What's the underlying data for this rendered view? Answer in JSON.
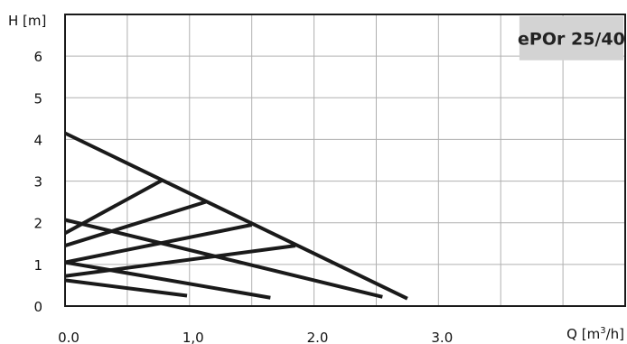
{
  "chart_data": {
    "type": "line",
    "title": "ePOr 25/40",
    "ylabel": "H [m]",
    "xlabel_prefix": "Q [m",
    "xlabel_sup": "3",
    "xlabel_suffix": "/h]",
    "xlim": [
      0,
      4.5
    ],
    "ylim": [
      0,
      7
    ],
    "xticks": [
      {
        "value": 0,
        "label": "0.0"
      },
      {
        "value": 1,
        "label": "1,0"
      },
      {
        "value": 2,
        "label": "2.0"
      },
      {
        "value": 3,
        "label": "3.0"
      }
    ],
    "yticks": [
      {
        "value": 0,
        "label": "0"
      },
      {
        "value": 1,
        "label": "1"
      },
      {
        "value": 2,
        "label": "2"
      },
      {
        "value": 3,
        "label": "3"
      },
      {
        "value": 4,
        "label": "4"
      },
      {
        "value": 5,
        "label": "5"
      },
      {
        "value": 6,
        "label": "6"
      }
    ],
    "grid": true,
    "line_color": "#1a1a1a",
    "grid_color": "#b0b0b0",
    "title_box_color": "#d3d3d3",
    "series": [
      {
        "points": [
          [
            0,
            4.15
          ],
          [
            2.75,
            0.18
          ]
        ]
      },
      {
        "points": [
          [
            0,
            2.07
          ],
          [
            2.55,
            0.22
          ]
        ]
      },
      {
        "points": [
          [
            0,
            1.05
          ],
          [
            1.65,
            0.2
          ]
        ]
      },
      {
        "points": [
          [
            0,
            0.62
          ],
          [
            0.98,
            0.25
          ]
        ]
      },
      {
        "points": [
          [
            0,
            1.75
          ],
          [
            0.78,
            3.02
          ]
        ]
      },
      {
        "points": [
          [
            0,
            1.45
          ],
          [
            1.13,
            2.5
          ]
        ]
      },
      {
        "points": [
          [
            0,
            1.05
          ],
          [
            1.5,
            1.95
          ]
        ]
      },
      {
        "points": [
          [
            0,
            0.72
          ],
          [
            1.85,
            1.45
          ]
        ]
      }
    ]
  }
}
